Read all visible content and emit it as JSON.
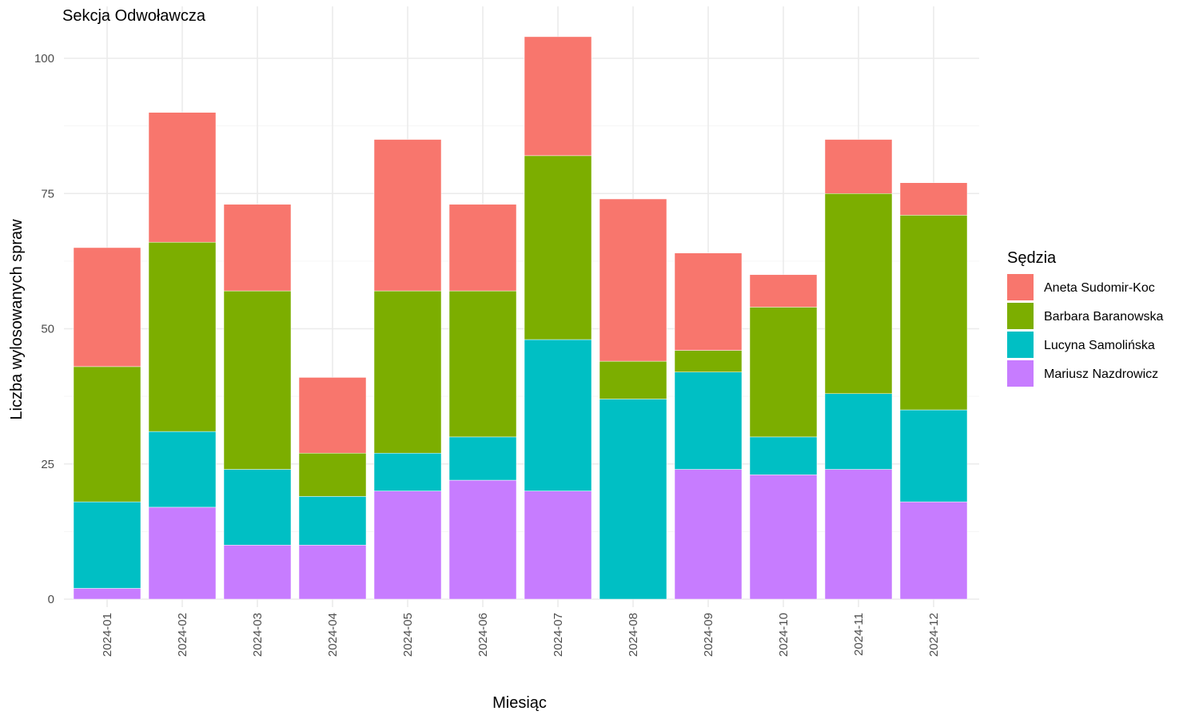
{
  "chart_data": {
    "type": "bar",
    "stacked": true,
    "title": "Sekcja Odwoławcza",
    "xlabel": "Miesiąc",
    "ylabel": "Liczba wylosowanych spraw",
    "ylim": [
      0,
      105
    ],
    "yticks": [
      0,
      25,
      50,
      75,
      100
    ],
    "grid": true,
    "legend_title": "Sędzia",
    "legend_position": "right",
    "categories": [
      "2024-01",
      "2024-02",
      "2024-03",
      "2024-04",
      "2024-05",
      "2024-06",
      "2024-07",
      "2024-08",
      "2024-09",
      "2024-10",
      "2024-11",
      "2024-12"
    ],
    "series": [
      {
        "name": "Mariusz Nazdrowicz",
        "color": "#C77CFF",
        "values": [
          2,
          17,
          10,
          10,
          20,
          22,
          20,
          0,
          24,
          23,
          24,
          18
        ]
      },
      {
        "name": "Lucyna Samolińska",
        "color": "#00BFC4",
        "values": [
          16,
          14,
          14,
          9,
          7,
          8,
          28,
          37,
          18,
          7,
          14,
          17
        ]
      },
      {
        "name": "Barbara Baranowska",
        "color": "#7CAE00",
        "values": [
          25,
          35,
          33,
          8,
          30,
          27,
          34,
          7,
          4,
          24,
          37,
          36
        ]
      },
      {
        "name": "Aneta Sudomir-Koc",
        "color": "#F8766D",
        "values": [
          22,
          24,
          16,
          14,
          28,
          16,
          22,
          30,
          18,
          6,
          10,
          6
        ]
      }
    ],
    "legend_order": [
      "Aneta Sudomir-Koc",
      "Barbara Baranowska",
      "Lucyna Samolińska",
      "Mariusz Nazdrowicz"
    ]
  }
}
